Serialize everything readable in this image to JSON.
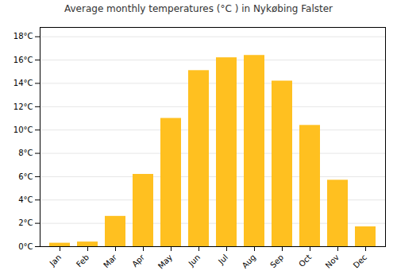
{
  "chart_data": {
    "type": "bar",
    "title": "Average monthly temperatures (°C ) in Nykøbing Falster",
    "categories": [
      "Jan",
      "Feb",
      "Mar",
      "Apr",
      "May",
      "Jun",
      "Jul",
      "Aug",
      "Sep",
      "Oct",
      "Nov",
      "Dec"
    ],
    "values": [
      0.3,
      0.4,
      2.6,
      6.2,
      11.0,
      15.1,
      16.2,
      16.4,
      14.2,
      10.4,
      5.7,
      1.7
    ],
    "color": "#FFC020",
    "ylim": [
      0,
      18.8
    ],
    "yticks": [
      {
        "value": 0,
        "label": "0°C"
      },
      {
        "value": 2,
        "label": "2°C"
      },
      {
        "value": 4,
        "label": "4°C"
      },
      {
        "value": 6,
        "label": "6°C"
      },
      {
        "value": 8,
        "label": "8°C"
      },
      {
        "value": 10,
        "label": "10°C"
      },
      {
        "value": 12,
        "label": "12°C"
      },
      {
        "value": 14,
        "label": "14°C"
      },
      {
        "value": 16,
        "label": "16°C"
      },
      {
        "value": 18,
        "label": "18°C"
      }
    ],
    "grid": true
  }
}
